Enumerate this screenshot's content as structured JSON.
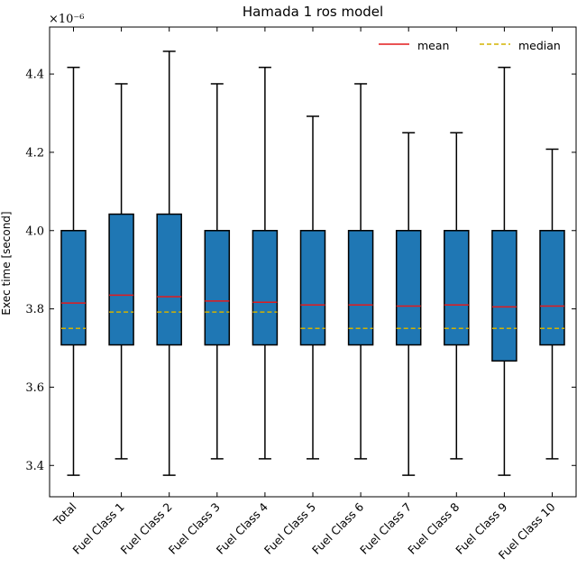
{
  "chart_data": {
    "type": "box",
    "title": "Hamada 1 ros model",
    "ylabel": "Exec time [second]",
    "xlabel": "",
    "y_offset_label": "×10⁻⁶",
    "y_scale_factor": "1e-6",
    "ylim": [
      3.32,
      4.52
    ],
    "yticks": [
      3.4,
      3.6,
      3.8,
      4.0,
      4.2,
      4.4
    ],
    "ytick_labels": [
      "3.4",
      "3.6",
      "3.8",
      "4.0",
      "4.2",
      "4.4"
    ],
    "legend": {
      "placement": "top-right",
      "entries": [
        {
          "label": "mean",
          "color": "#e41a1c",
          "style": "solid"
        },
        {
          "label": "median",
          "color": "#d4b300",
          "style": "dashed"
        }
      ]
    },
    "box_color": "#1f77b4",
    "categories": [
      "Total",
      "Fuel Class 1",
      "Fuel Class 2",
      "Fuel Class 3",
      "Fuel Class 4",
      "Fuel Class 5",
      "Fuel Class 6",
      "Fuel Class 7",
      "Fuel Class 8",
      "Fuel Class 9",
      "Fuel Class 10"
    ],
    "boxes": [
      {
        "whislo": 3.375,
        "q1": 3.708,
        "med": 3.75,
        "mean": 3.815,
        "q3": 4.0,
        "whishi": 4.417
      },
      {
        "whislo": 3.417,
        "q1": 3.708,
        "med": 3.792,
        "mean": 3.835,
        "q3": 4.042,
        "whishi": 4.375
      },
      {
        "whislo": 3.375,
        "q1": 3.708,
        "med": 3.792,
        "mean": 3.831,
        "q3": 4.042,
        "whishi": 4.458
      },
      {
        "whislo": 3.417,
        "q1": 3.708,
        "med": 3.792,
        "mean": 3.82,
        "q3": 4.0,
        "whishi": 4.375
      },
      {
        "whislo": 3.417,
        "q1": 3.708,
        "med": 3.792,
        "mean": 3.817,
        "q3": 4.0,
        "whishi": 4.417
      },
      {
        "whislo": 3.417,
        "q1": 3.708,
        "med": 3.75,
        "mean": 3.81,
        "q3": 4.0,
        "whishi": 4.292
      },
      {
        "whislo": 3.417,
        "q1": 3.708,
        "med": 3.75,
        "mean": 3.81,
        "q3": 4.0,
        "whishi": 4.375
      },
      {
        "whislo": 3.375,
        "q1": 3.708,
        "med": 3.75,
        "mean": 3.807,
        "q3": 4.0,
        "whishi": 4.25
      },
      {
        "whislo": 3.417,
        "q1": 3.708,
        "med": 3.75,
        "mean": 3.81,
        "q3": 4.0,
        "whishi": 4.25
      },
      {
        "whislo": 3.375,
        "q1": 3.667,
        "med": 3.75,
        "mean": 3.805,
        "q3": 4.0,
        "whishi": 4.417
      },
      {
        "whislo": 3.417,
        "q1": 3.708,
        "med": 3.75,
        "mean": 3.807,
        "q3": 4.0,
        "whishi": 4.208
      }
    ]
  }
}
